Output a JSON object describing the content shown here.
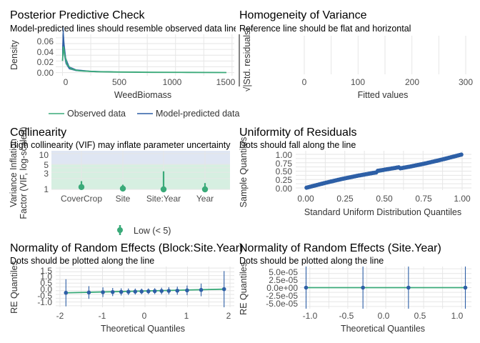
{
  "chart_data": [
    {
      "id": "ppc",
      "type": "line",
      "title": "Posterior Predictive Check",
      "subtitle": "Model-predicted lines should resemble observed data line",
      "xlabel": "WeedBiomass",
      "ylabel": "Density",
      "xlim": [
        -60,
        1520
      ],
      "ylim": [
        -0.003,
        0.066
      ],
      "xticks": [
        "0",
        "500",
        "1000",
        "1500"
      ],
      "yticks": [
        "0.00",
        "0.02",
        "0.04",
        "0.06"
      ],
      "grid": true,
      "legend": "bottom",
      "series": [
        {
          "name": "Observed data",
          "color": "#3aaa79",
          "x": [
            0,
            8,
            20,
            40,
            80,
            150,
            300,
            500,
            800,
            1100,
            1450
          ],
          "y": [
            0.02,
            0.045,
            0.03,
            0.014,
            0.006,
            0.003,
            0.0015,
            0.001,
            0.0005,
            0.0003,
            0.0001
          ]
        },
        {
          "name": "Model-predicted data",
          "color": "#2d5fa6",
          "x": [
            0,
            6,
            15,
            30,
            60,
            120,
            250,
            450,
            700,
            1000,
            1450
          ],
          "y": [
            0.03,
            0.062,
            0.04,
            0.02,
            0.008,
            0.004,
            0.002,
            0.0012,
            0.0006,
            0.0003,
            0.0001
          ]
        }
      ]
    },
    {
      "id": "hov",
      "type": "scatter",
      "title": "Homogeneity of Variance",
      "subtitle": "Reference line should be flat and horizontal",
      "xlabel": "Fitted values",
      "ylabel": "√|Std. residuals|",
      "xlim": [
        -60,
        310
      ],
      "xticks": [
        "0",
        "100",
        "200",
        "300"
      ],
      "grid": true,
      "points": []
    },
    {
      "id": "col",
      "type": "scatter",
      "title": "Collinearity",
      "subtitle": "High collinearity (VIF) may inflate parameter uncertainty",
      "xlabel": "",
      "ylabel": "Variance Inflation Factor (VIF, log-scaled)",
      "categories": [
        "CoverCrop",
        "Site",
        "Site:Year",
        "Year"
      ],
      "yticks": [
        "1",
        "3",
        "5",
        "10"
      ],
      "y_scale": "log",
      "ylim": [
        1,
        12
      ],
      "grid": true,
      "legend": "bottom",
      "legend_entries": [
        {
          "name": "Low (< 5)",
          "color": "#3aaa79"
        }
      ],
      "bands": [
        {
          "from": 1,
          "to": 5,
          "color": "#d6efe1"
        },
        {
          "from": 5,
          "to": 10,
          "color": "#dfe6f3"
        },
        {
          "from": 10,
          "to": 12,
          "color": "#dfe6f3"
        }
      ],
      "values": [
        1.16,
        1.05,
        1.0,
        1.0
      ],
      "ci_high": [
        1.7,
        1.35,
        3.2,
        1.5
      ],
      "point_color": "#3aaa79"
    },
    {
      "id": "unif",
      "type": "scatter",
      "title": "Uniformity of Residuals",
      "subtitle": "Dots should fall along the line",
      "xlabel": "Standard Uniform Distribution Quantiles",
      "ylabel": "Sample Quantiles",
      "xlim": [
        -0.04,
        1.04
      ],
      "ylim": [
        -0.03,
        1.05
      ],
      "xticks": [
        "0.00",
        "0.25",
        "0.50",
        "0.75",
        "1.00"
      ],
      "yticks": [
        "0.00",
        "0.25",
        "0.50",
        "0.75",
        "1.00"
      ],
      "grid": true,
      "n_points": 90,
      "point_color": "#2d5fa6",
      "line_color": "#3aaa79"
    },
    {
      "id": "re1",
      "type": "scatter",
      "title": "Normality of Random Effects (Block:Site.Year)",
      "subtitle": "Dots should be plotted along the line",
      "xlabel": "Theoretical Quantiles",
      "ylabel": "RE Quantiles",
      "xlim": [
        -2.1,
        2.1
      ],
      "ylim": [
        -1.1,
        1.6
      ],
      "xticks": [
        "-2",
        "-1",
        "0",
        "1",
        "2"
      ],
      "yticks": [
        "-1.0",
        "-0.5",
        "0.0",
        "0.5",
        "1.0",
        "1.5"
      ],
      "grid": true,
      "x": [
        -1.86,
        -1.32,
        -0.99,
        -0.76,
        -0.56,
        -0.39,
        -0.23,
        -0.08,
        0.08,
        0.23,
        0.39,
        0.56,
        0.76,
        0.99,
        1.32,
        1.86
      ],
      "y": [
        -0.14,
        -0.12,
        -0.1,
        -0.09,
        -0.08,
        -0.07,
        -0.06,
        -0.05,
        -0.04,
        -0.03,
        -0.02,
        -0.01,
        0.0,
        0.02,
        0.05,
        0.1
      ],
      "err": [
        0.9,
        0.42,
        0.32,
        0.27,
        0.24,
        0.22,
        0.2,
        0.19,
        0.19,
        0.2,
        0.22,
        0.24,
        0.27,
        0.32,
        0.42,
        1.2
      ],
      "point_color": "#2d5fa6",
      "line_color": "#3aaa79"
    },
    {
      "id": "re2",
      "type": "scatter",
      "title": "Normality of Random Effects (Site.Year)",
      "subtitle": "Dots should be plotted along the line",
      "xlabel": "Theoretical Quantiles",
      "ylabel": "RE Quantiles",
      "xlim": [
        -1.13,
        1.13
      ],
      "ylim": [
        -5.6e-05,
        5.6e-05
      ],
      "xticks": [
        "-1.0",
        "-0.5",
        "0.0",
        "0.5",
        "1.0"
      ],
      "yticks": [
        "-5.0e-05",
        "-2.5e-05",
        "0.0e+00",
        "2.5e-05",
        "5.0e-05"
      ],
      "grid": true,
      "x": [
        -1.05,
        -0.3,
        0.3,
        1.05
      ],
      "y": [
        0,
        0,
        0,
        0
      ],
      "err": [
        5.6e-05,
        5.6e-05,
        5.6e-05,
        5.6e-05
      ],
      "point_color": "#2d5fa6",
      "line_color": "#3aaa79"
    }
  ]
}
